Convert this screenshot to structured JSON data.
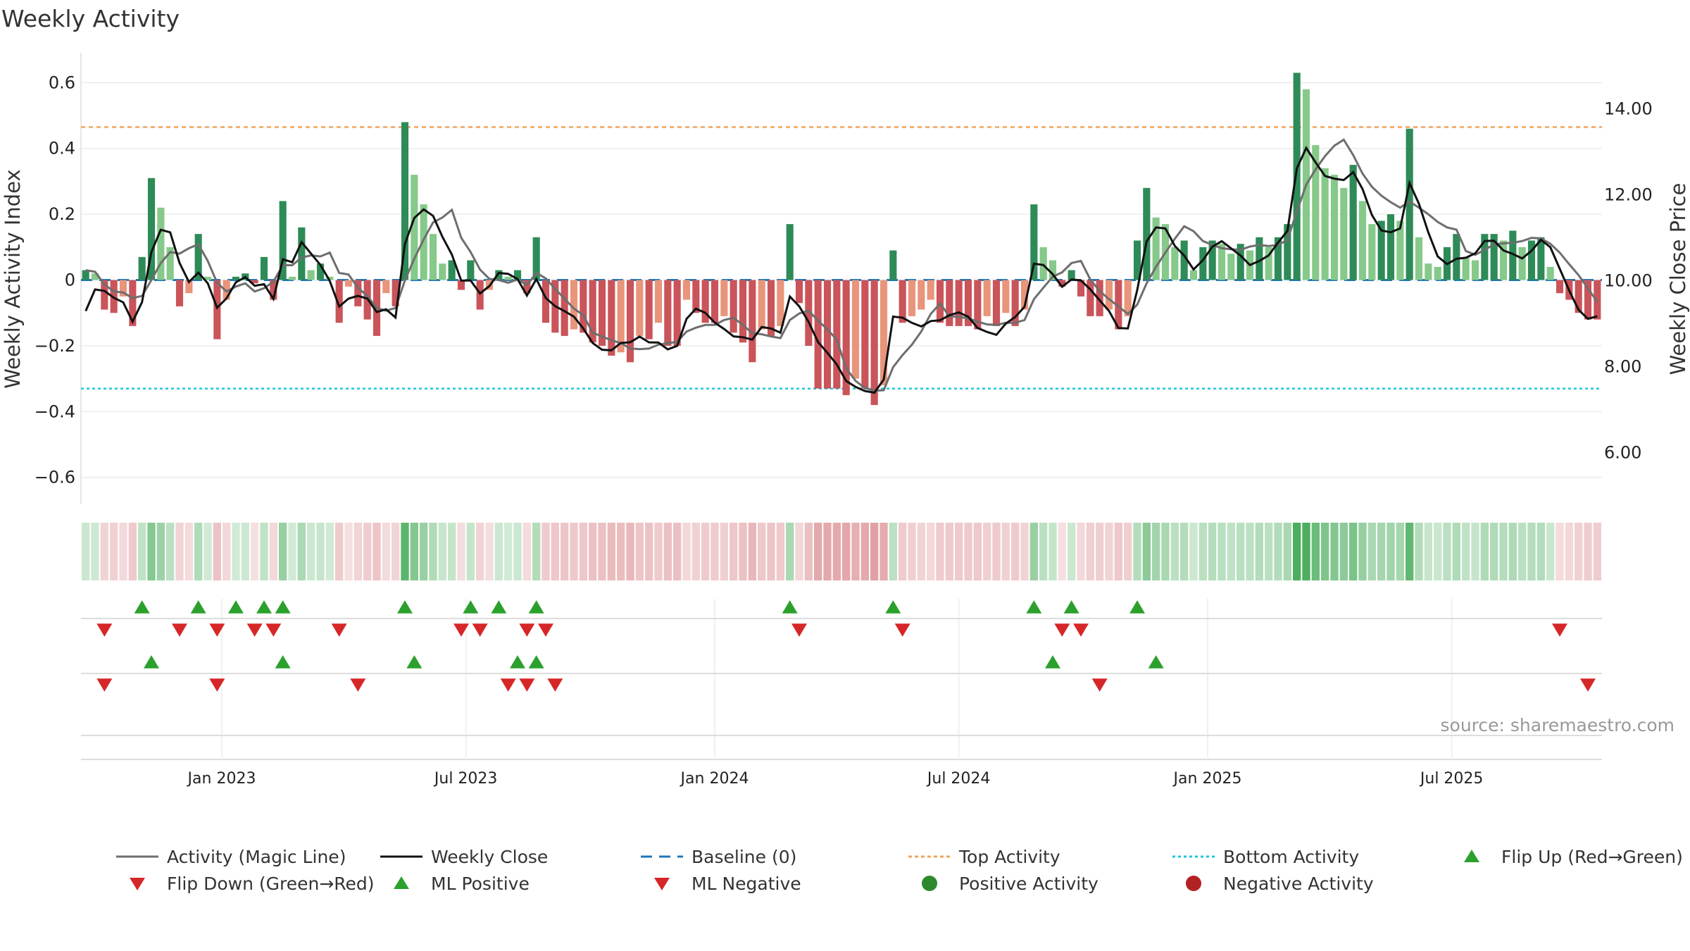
{
  "chart_data": {
    "type": "bar",
    "title": "Weekly Activity",
    "ylabel": "Weekly Activity Index",
    "y2label": "Weekly Close Price",
    "ylim": [
      -0.68,
      0.68
    ],
    "y2lim": [
      4.8,
      15.2
    ],
    "yticks": [
      "0.6",
      "0.4",
      "0.2",
      "0",
      "−0.2",
      "−0.4",
      "−0.6"
    ],
    "yticks_values": [
      0.6,
      0.4,
      0.2,
      0,
      -0.2,
      -0.4,
      -0.6
    ],
    "y2ticks": [
      "14.00",
      "12.00",
      "10.00",
      "8.00",
      "6.00"
    ],
    "y2ticks_values": [
      14,
      12,
      10,
      8,
      6
    ],
    "x_start_week": 0,
    "weeks": 180,
    "x_ticks": [
      {
        "label": "Jan 2023",
        "week": 15
      },
      {
        "label": "Jul 2023",
        "week": 41
      },
      {
        "label": "Jan 2024",
        "week": 67.5
      },
      {
        "label": "Jul 2024",
        "week": 93.5
      },
      {
        "label": "Jan 2025",
        "week": 120
      },
      {
        "label": "Jul 2025",
        "week": 146
      }
    ],
    "top_activity": 0.465,
    "bottom_activity": -0.33,
    "activity": [
      0.03,
      0.02,
      -0.09,
      -0.1,
      -0.05,
      -0.14,
      0.07,
      0.31,
      0.22,
      0.1,
      -0.08,
      -0.04,
      0.14,
      0.01,
      -0.18,
      -0.06,
      0.01,
      0.02,
      -0.01,
      0.07,
      -0.06,
      0.24,
      0.01,
      0.16,
      0.03,
      0.05,
      0.01,
      -0.13,
      -0.02,
      -0.08,
      -0.12,
      -0.17,
      -0.04,
      -0.08,
      0.48,
      0.32,
      0.23,
      0.14,
      0.05,
      0.06,
      -0.03,
      0.06,
      -0.09,
      -0.03,
      0.03,
      0.01,
      0.03,
      -0.04,
      0.13,
      -0.13,
      -0.16,
      -0.17,
      -0.15,
      -0.16,
      -0.19,
      -0.2,
      -0.23,
      -0.22,
      -0.25,
      -0.17,
      -0.18,
      -0.13,
      -0.2,
      -0.2,
      -0.06,
      -0.1,
      -0.13,
      -0.13,
      -0.11,
      -0.16,
      -0.19,
      -0.25,
      -0.15,
      -0.17,
      -0.14,
      0.17,
      -0.07,
      -0.2,
      -0.33,
      -0.33,
      -0.33,
      -0.35,
      -0.3,
      -0.33,
      -0.38,
      -0.32,
      0.09,
      -0.13,
      -0.11,
      -0.09,
      -0.06,
      -0.13,
      -0.14,
      -0.14,
      -0.14,
      -0.15,
      -0.11,
      -0.14,
      -0.1,
      -0.14,
      -0.09,
      0.23,
      0.1,
      0.06,
      -0.02,
      0.03,
      -0.05,
      -0.11,
      -0.11,
      -0.09,
      -0.15,
      -0.11,
      0.12,
      0.28,
      0.19,
      0.17,
      0.1,
      0.12,
      0.03,
      0.1,
      0.12,
      0.11,
      0.08,
      0.11,
      0.09,
      0.13,
      0.1,
      0.13,
      0.17,
      0.63,
      0.58,
      0.41,
      0.34,
      0.32,
      0.28,
      0.35,
      0.24,
      0.17,
      0.18,
      0.2,
      0.18,
      0.46,
      0.13,
      0.05,
      0.04,
      0.1,
      0.14,
      0.07,
      0.06,
      0.14,
      0.14,
      0.12,
      0.15,
      0.1,
      0.12,
      0.13,
      0.04,
      -0.04,
      -0.06,
      -0.1,
      -0.12,
      -0.12
    ]
  },
  "legend": [
    {
      "label": "Activity (Magic Line)"
    },
    {
      "label": "Weekly Close"
    },
    {
      "label": "Baseline (0)"
    },
    {
      "label": "Top Activity"
    },
    {
      "label": "Bottom Activity"
    },
    {
      "label": "Flip Up (Red→Green)"
    },
    {
      "label": "Flip Down (Green→Red)"
    },
    {
      "label": "ML Positive"
    },
    {
      "label": "ML Negative"
    },
    {
      "label": "Positive Activity"
    },
    {
      "label": "Negative Activity"
    }
  ],
  "source": "source: sharemaestro.com",
  "colors": {
    "pos_dark": "#2e8b57",
    "pos_light": "#86c98a",
    "neg_dark": "#c9545a",
    "neg_light": "#e8957c",
    "magic_line": "#6e6e6e",
    "close_line": "#111111",
    "baseline": "#1f77b4",
    "top": "#f0a35e",
    "bottom": "#20c4d8",
    "flip_up": "#2ca02c",
    "flip_down": "#d62728"
  }
}
